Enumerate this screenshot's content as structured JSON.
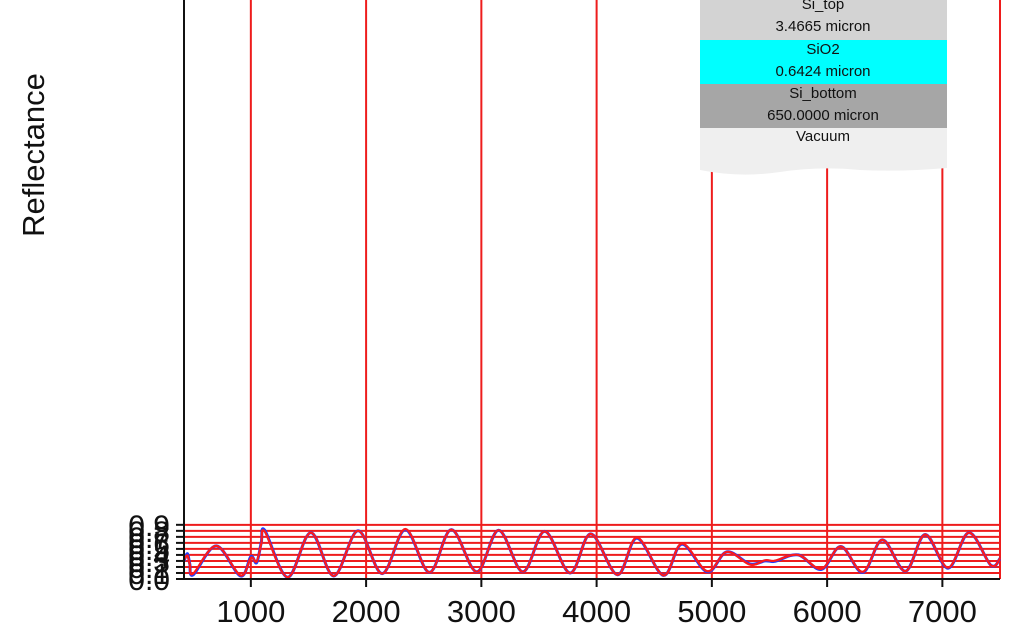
{
  "chart_data": {
    "type": "line",
    "xlabel": "",
    "ylabel": "Reflectance",
    "xlim": [
      420,
      7500
    ],
    "ylim": [
      0.0,
      1.0
    ],
    "x_ticks": [
      1000,
      2000,
      3000,
      4000,
      5000,
      6000,
      7000
    ],
    "y_ticks": [
      "0.0",
      "0.1",
      "0.2",
      "0.3",
      "0.4",
      "0.5",
      "0.6",
      "0.7",
      "0.8",
      "0.9"
    ],
    "grid": true,
    "colors": {
      "grid": "#ee1c1c",
      "measured": "#1f3bff",
      "fit": "#ff1a1a"
    },
    "series": [
      {
        "style": "measured-blue",
        "x": [
          420,
          450,
          470,
          500,
          700,
          910,
          1000,
          1050,
          1090,
          1120,
          1320,
          1520,
          1720,
          1930,
          2140,
          2340,
          2550,
          2740,
          2960,
          3150,
          3360,
          3550,
          3770,
          3950,
          4180,
          4350,
          4580,
          4740,
          4960,
          5130,
          5330,
          5460,
          5520,
          5560,
          5750,
          5950,
          6120,
          6310,
          6480,
          6680,
          6850,
          7050,
          7230,
          7420,
          7500
        ],
        "y": [
          0.3,
          0.42,
          0.25,
          0.07,
          0.55,
          0.05,
          0.37,
          0.27,
          0.6,
          0.81,
          0.03,
          0.77,
          0.05,
          0.8,
          0.09,
          0.82,
          0.11,
          0.82,
          0.12,
          0.81,
          0.12,
          0.79,
          0.1,
          0.75,
          0.07,
          0.68,
          0.06,
          0.58,
          0.12,
          0.45,
          0.25,
          0.3,
          0.29,
          0.3,
          0.4,
          0.16,
          0.54,
          0.11,
          0.65,
          0.13,
          0.74,
          0.18,
          0.77,
          0.23,
          0.34
        ]
      },
      {
        "style": "fit-red",
        "x": [
          420,
          450,
          470,
          500,
          700,
          910,
          1000,
          1050,
          1090,
          1120,
          1320,
          1520,
          1720,
          1930,
          2140,
          2340,
          2550,
          2740,
          2960,
          3150,
          3360,
          3550,
          3770,
          3950,
          4180,
          4350,
          4580,
          4740,
          4960,
          5130,
          5330,
          5460,
          5520,
          5560,
          5750,
          5950,
          6120,
          6310,
          6480,
          6680,
          6850,
          7050,
          7230,
          7420,
          7500
        ],
        "y": [
          0.32,
          0.39,
          0.24,
          0.09,
          0.55,
          0.06,
          0.35,
          0.29,
          0.58,
          0.79,
          0.03,
          0.77,
          0.05,
          0.8,
          0.09,
          0.83,
          0.11,
          0.82,
          0.12,
          0.81,
          0.12,
          0.79,
          0.1,
          0.75,
          0.07,
          0.69,
          0.06,
          0.59,
          0.13,
          0.45,
          0.24,
          0.31,
          0.3,
          0.31,
          0.4,
          0.17,
          0.54,
          0.12,
          0.65,
          0.13,
          0.74,
          0.19,
          0.77,
          0.23,
          0.34
        ]
      }
    ]
  },
  "layer_stack": {
    "layers": [
      {
        "name": "Si_top",
        "thickness": "3.4665 micron",
        "color": "#d3d3d3"
      },
      {
        "name": "SiO2",
        "thickness": "0.6424 micron",
        "color": "#00ffff"
      },
      {
        "name": "Si_bottom",
        "thickness": "650.0000 micron",
        "color": "#a6a6a6"
      },
      {
        "name": "Vacuum",
        "thickness": "",
        "color": "#efefef"
      }
    ]
  }
}
